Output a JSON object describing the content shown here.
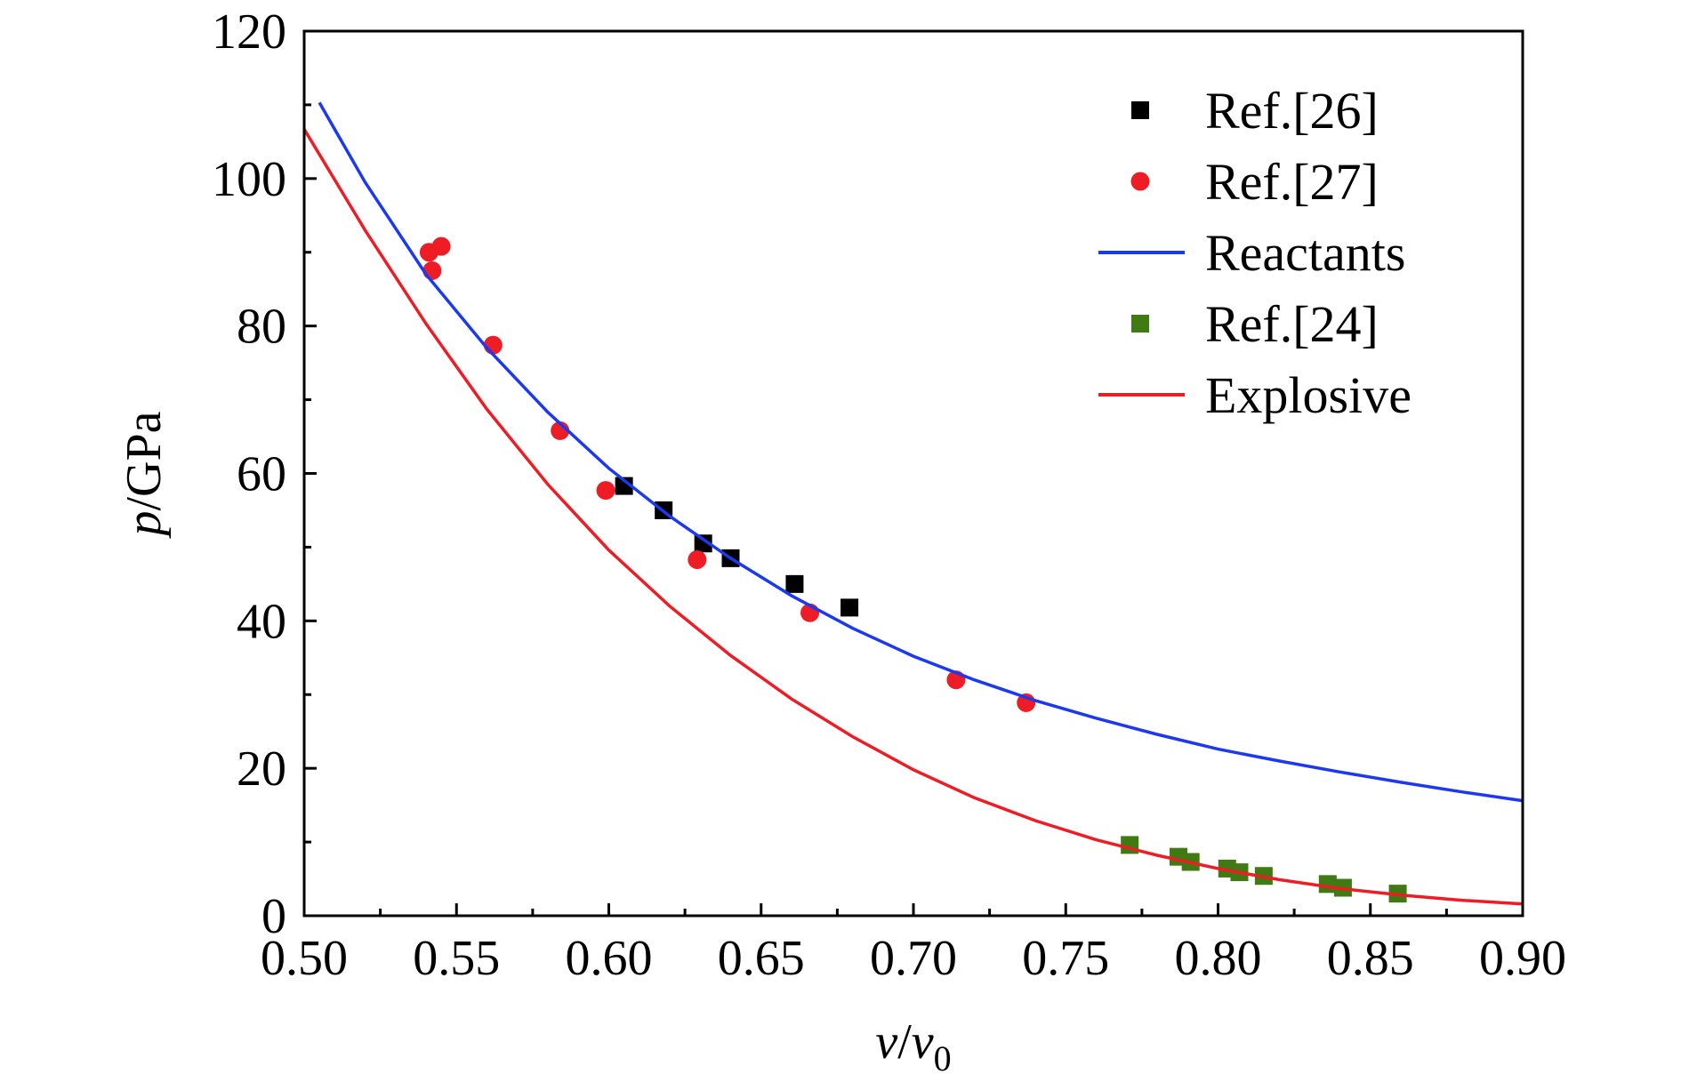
{
  "chart_data": {
    "type": "scatter",
    "xlim": [
      0.5,
      0.9
    ],
    "ylim": [
      0,
      120
    ],
    "xticks": [
      "0.50",
      "0.55",
      "0.60",
      "0.65",
      "0.70",
      "0.75",
      "0.80",
      "0.85",
      "0.90"
    ],
    "yticks": [
      "0",
      "20",
      "40",
      "60",
      "80",
      "100",
      "120"
    ],
    "xlabel": {
      "v": "v",
      "sep": "/",
      "v0": "v",
      "sub": "0"
    },
    "ylabel": {
      "p": "p",
      "rest": "/GPa"
    },
    "legend_position": "top-right",
    "grid": false,
    "series": [
      {
        "name": "Ref.[26]",
        "kind": "points",
        "marker": "square",
        "color": "#000000",
        "x": [
          0.605,
          0.618,
          0.631,
          0.64,
          0.661,
          0.679
        ],
        "y": [
          58.3,
          55.0,
          50.5,
          48.5,
          45.0,
          41.8
        ]
      },
      {
        "name": "Ref.[27]",
        "kind": "points",
        "marker": "circle",
        "color": "#ee1c25",
        "x": [
          0.541,
          0.542,
          0.545,
          0.562,
          0.584,
          0.599,
          0.629,
          0.666,
          0.714,
          0.737
        ],
        "y": [
          90.0,
          87.5,
          90.8,
          77.4,
          65.8,
          57.7,
          48.3,
          41.1,
          32.0,
          28.9
        ]
      },
      {
        "name": "Reactants",
        "kind": "line",
        "color": "#1c39f0",
        "x": [
          0.505,
          0.52,
          0.54,
          0.56,
          0.58,
          0.6,
          0.62,
          0.64,
          0.66,
          0.68,
          0.7,
          0.72,
          0.74,
          0.76,
          0.78,
          0.8,
          0.82,
          0.84,
          0.86,
          0.88,
          0.9
        ],
        "y": [
          110.3,
          99.5,
          87.0,
          77.0,
          68.3,
          60.7,
          54.2,
          48.5,
          43.4,
          39.0,
          35.2,
          32.0,
          29.2,
          26.8,
          24.6,
          22.6,
          21.0,
          19.5,
          18.1,
          16.8,
          15.6
        ]
      },
      {
        "name": "Ref.[24]",
        "kind": "points",
        "marker": "square",
        "color": "#3f7a12",
        "x": [
          0.771,
          0.787,
          0.791,
          0.803,
          0.807,
          0.815,
          0.836,
          0.841,
          0.859
        ],
        "y": [
          9.6,
          8.0,
          7.3,
          6.4,
          5.9,
          5.4,
          4.3,
          3.8,
          3.0
        ]
      },
      {
        "name": "Explosive",
        "kind": "line",
        "color": "#ee1c25",
        "x": [
          0.5,
          0.52,
          0.54,
          0.56,
          0.58,
          0.6,
          0.62,
          0.64,
          0.66,
          0.68,
          0.7,
          0.72,
          0.74,
          0.76,
          0.78,
          0.8,
          0.82,
          0.84,
          0.86,
          0.88,
          0.9
        ],
        "y": [
          106.7,
          93.0,
          80.3,
          68.7,
          58.5,
          49.6,
          42.0,
          35.3,
          29.4,
          24.3,
          19.8,
          16.0,
          12.9,
          10.3,
          8.2,
          6.4,
          4.9,
          3.7,
          2.8,
          2.1,
          1.6
        ]
      }
    ]
  }
}
